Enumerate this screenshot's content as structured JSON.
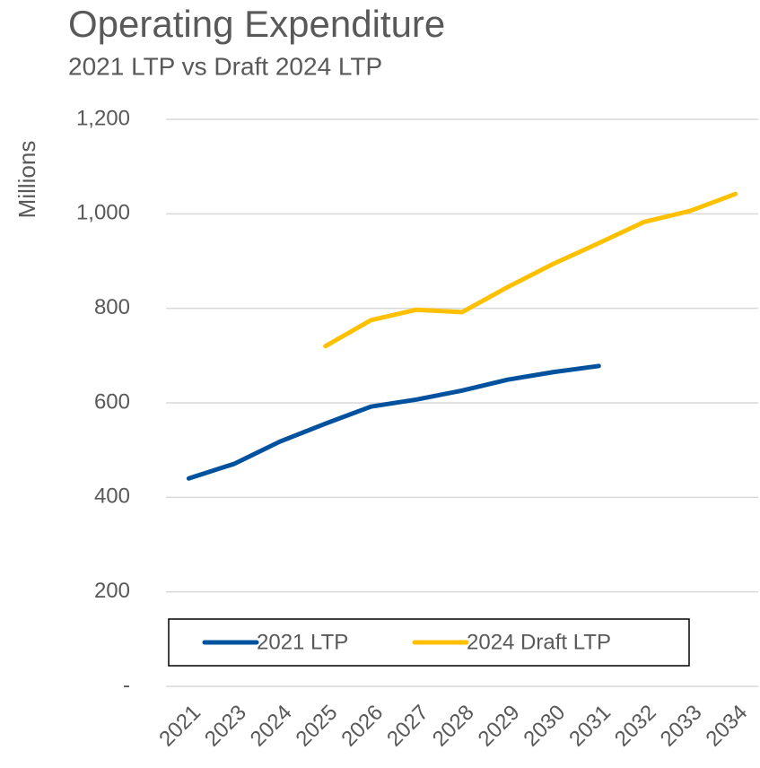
{
  "chart_data": {
    "type": "line",
    "title": "Operating Expenditure",
    "subtitle": "2021 LTP vs Draft 2024 LTP",
    "y_label": "Millions",
    "categories": [
      "2021",
      "2023",
      "2024",
      "2025",
      "2026",
      "2027",
      "2028",
      "2029",
      "2030",
      "2031",
      "2032",
      "2033",
      "2034"
    ],
    "series": [
      {
        "name": "2021 LTP",
        "color": "#00519e",
        "values": [
          440,
          471,
          518,
          556,
          592,
          607,
          626,
          649,
          665,
          678,
          null,
          null,
          null
        ]
      },
      {
        "name": "2024 Draft LTP",
        "color": "#ffc000",
        "values": [
          null,
          null,
          null,
          720,
          775,
          797,
          792,
          845,
          894,
          938,
          983,
          1006,
          1042
        ]
      }
    ],
    "ylim": [
      0,
      1200
    ],
    "yticks": [
      {
        "value": 0,
        "label": "-"
      },
      200,
      400,
      600,
      800,
      {
        "value": 1000,
        "label": "1,000"
      },
      {
        "value": 1200,
        "label": "1,200"
      }
    ],
    "grid": true,
    "legend": "bottom"
  }
}
